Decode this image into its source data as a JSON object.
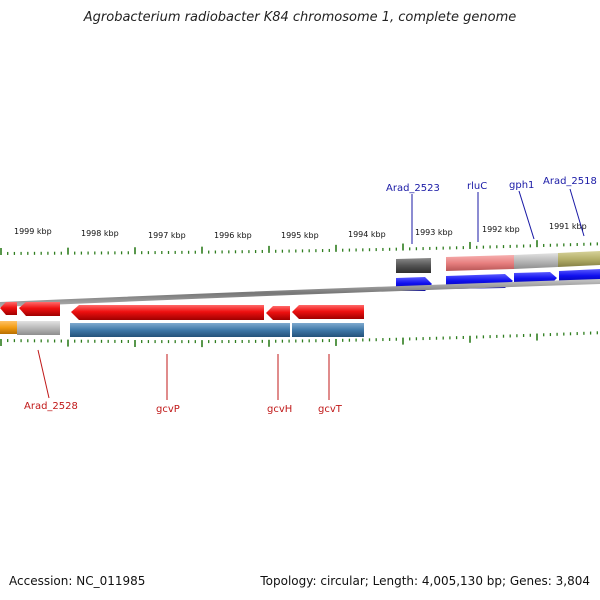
{
  "title": "Agrobacterium radiobacter K84 chromosome 1, complete genome",
  "footer": {
    "accession": "Accession: NC_011985",
    "topology": "Topology: circular; Length: 4,005,130 bp; Genes: 3,804"
  },
  "scale_labels": [
    "1999 kbp",
    "1998 kbp",
    "1997 kbp",
    "1996 kbp",
    "1995 kbp",
    "1994 kbp",
    "1993 kbp",
    "1992 kbp",
    "1991 kbp"
  ],
  "gene_labels": {
    "top": [
      "Arad_2523",
      "rluC",
      "gph1",
      "Arad_2518"
    ],
    "bottom": [
      "Arad_2528",
      "gcvP",
      "gcvH",
      "gcvT"
    ]
  },
  "colors": {
    "forward_gene": "#1010ee",
    "reverse_gene": "#ee1010",
    "tick": "#2e7d1e",
    "backbone": "#8a8a8a",
    "label_blue": "#1a1aa6",
    "label_red": "#c01818",
    "steel_blue_band": "#3f78a8",
    "orange_band": "#f39c12",
    "salmon_band": "#e88080",
    "olive_band": "#b5b06a",
    "grey_band": "#b8b8b8",
    "dark_grey_band": "#555555"
  }
}
